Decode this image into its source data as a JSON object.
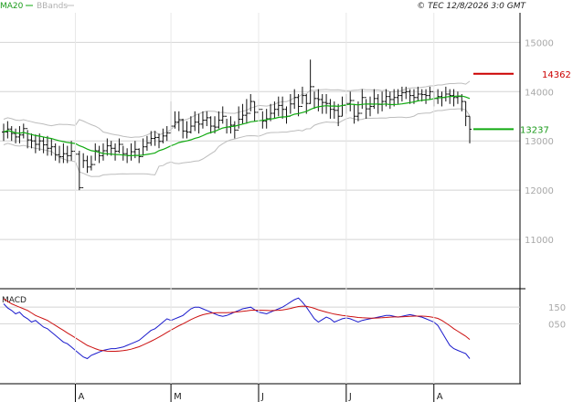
{
  "header": {
    "legend_ma": "MA20",
    "legend_bb": "BBands",
    "copyright": "© TEC 12/8/2026 3:0 GMT"
  },
  "macd_panel": {
    "title": "MACD"
  },
  "colors": {
    "ma": "#11aa11",
    "bbands": "#bdbdbd",
    "ohlc": "#111111",
    "grid": "#d4d4d4",
    "macd": "#1a1acc",
    "signal": "#cc1111",
    "high_marker": "#cc0000",
    "ma_marker": "#11aa11"
  },
  "chart_data": [
    {
      "type": "ohlc",
      "ylim": [
        10000,
        15600
      ],
      "yticks": [
        11000,
        12000,
        13000,
        14000,
        15000
      ],
      "ytick_labels": [
        "11000",
        "12000",
        "13000",
        "14000",
        "15000"
      ],
      "xticks": [
        {
          "label": "A",
          "index": 18
        },
        {
          "label": "M",
          "index": 42
        },
        {
          "label": "J",
          "index": 64
        },
        {
          "label": "J",
          "index": 86
        },
        {
          "label": "A",
          "index": 108
        }
      ],
      "markers": [
        {
          "label": "14362",
          "value": 14362,
          "kind": "high"
        },
        {
          "label": "13237",
          "value": 13237,
          "kind": "ma"
        }
      ],
      "ma_series": "MA20",
      "bb_series": "BBands",
      "closes": [
        13180,
        13240,
        13150,
        13080,
        13120,
        13250,
        13020,
        13000,
        12930,
        13000,
        12920,
        12850,
        12880,
        12720,
        12680,
        12740,
        12700,
        12790,
        12730,
        12050,
        12600,
        12470,
        12520,
        12800,
        12700,
        12800,
        12900,
        12850,
        12790,
        12930,
        12740,
        12700,
        12780,
        12830,
        12680,
        12880,
        12960,
        13050,
        13070,
        12990,
        13100,
        13160,
        13300,
        13380,
        13430,
        13200,
        13180,
        13300,
        13380,
        13340,
        13420,
        13470,
        13300,
        13280,
        13420,
        13500,
        13280,
        13320,
        13220,
        13440,
        13520,
        13560,
        13800,
        13580,
        13640,
        13400,
        13450,
        13560,
        13640,
        13720,
        13640,
        13500,
        13750,
        13880,
        13700,
        13920,
        13760,
        14100,
        13860,
        13840,
        13780,
        13760,
        13640,
        13620,
        13500,
        13720,
        13760,
        13820,
        13500,
        13560,
        13880,
        13650,
        13700,
        13860,
        13740,
        13800,
        13900,
        13840,
        13880,
        13920,
        13980,
        14000,
        13920,
        13880,
        13950,
        13940,
        13920,
        14000,
        13860,
        13900,
        13880,
        13950,
        13920,
        13880,
        13900,
        13800,
        13500,
        13237
      ],
      "highs": [
        13350,
        13400,
        13300,
        13250,
        13300,
        13350,
        13220,
        13150,
        13130,
        13150,
        13080,
        13100,
        13050,
        12950,
        12900,
        12950,
        12900,
        13000,
        12900,
        12800,
        12750,
        12700,
        12700,
        12950,
        12900,
        12950,
        13050,
        13000,
        12950,
        13050,
        12900,
        12850,
        12950,
        13000,
        12850,
        13050,
        13100,
        13200,
        13200,
        13150,
        13250,
        13300,
        13800,
        13600,
        13600,
        13450,
        13400,
        13500,
        13600,
        13550,
        13600,
        13600,
        13500,
        13500,
        13600,
        13700,
        13450,
        13500,
        13400,
        13700,
        13750,
        13850,
        13950,
        13800,
        13850,
        13600,
        13650,
        13750,
        13800,
        13900,
        13900,
        13700,
        13950,
        14050,
        13950,
        14100,
        13950,
        14650,
        14000,
        14050,
        13950,
        13950,
        13850,
        13800,
        13750,
        13900,
        13950,
        14000,
        13750,
        13800,
        14050,
        13850,
        13900,
        14050,
        13950,
        14000,
        14050,
        14000,
        14050,
        14050,
        14100,
        14100,
        14050,
        14050,
        14100,
        14050,
        14050,
        14100,
        14000,
        14050,
        14000,
        14100,
        14050,
        14050,
        14000,
        13950,
        13800,
        13500
      ],
      "lows": [
        13000,
        13050,
        13000,
        12950,
        12950,
        13050,
        12850,
        12850,
        12750,
        12800,
        12750,
        12700,
        12700,
        12600,
        12550,
        12550,
        12550,
        12600,
        12550,
        12000,
        12450,
        12350,
        12400,
        12600,
        12550,
        12600,
        12700,
        12700,
        12600,
        12750,
        12600,
        12550,
        12600,
        12650,
        12550,
        12700,
        12800,
        12900,
        12900,
        12850,
        12950,
        13000,
        13150,
        13250,
        13200,
        13050,
        13050,
        13150,
        13200,
        13150,
        13250,
        13300,
        13150,
        13150,
        13250,
        13350,
        13150,
        13150,
        13050,
        13250,
        13350,
        13350,
        13600,
        13400,
        13450,
        13250,
        13250,
        13400,
        13450,
        13500,
        13450,
        13350,
        13550,
        13650,
        13500,
        13750,
        13550,
        13750,
        13650,
        13600,
        13550,
        13550,
        13450,
        13450,
        13300,
        13500,
        13550,
        13600,
        13350,
        13400,
        13650,
        13450,
        13500,
        13650,
        13550,
        13600,
        13700,
        13650,
        13700,
        13750,
        13800,
        13850,
        13750,
        13750,
        13800,
        13800,
        13750,
        13850,
        13700,
        13750,
        13700,
        13800,
        13750,
        13700,
        13750,
        13600,
        13300,
        12950
      ]
    },
    {
      "type": "line",
      "title": "MACD",
      "ylim": [
        -300,
        250
      ],
      "yticks": [
        50,
        150
      ],
      "ytick_labels": [
        "050",
        "150"
      ],
      "series": [
        {
          "name": "MACD",
          "color": "#1a1acc",
          "values": [
            170,
            145,
            130,
            110,
            120,
            95,
            80,
            60,
            70,
            50,
            30,
            20,
            0,
            -20,
            -40,
            -60,
            -70,
            -90,
            -110,
            -130,
            -150,
            -160,
            -140,
            -130,
            -120,
            -110,
            -105,
            -100,
            -100,
            -95,
            -90,
            -80,
            -70,
            -60,
            -50,
            -30,
            -10,
            10,
            20,
            40,
            60,
            80,
            70,
            80,
            90,
            100,
            120,
            140,
            150,
            150,
            140,
            130,
            120,
            110,
            100,
            95,
            100,
            110,
            120,
            130,
            140,
            145,
            150,
            135,
            120,
            115,
            110,
            120,
            130,
            140,
            150,
            165,
            180,
            195,
            205,
            180,
            150,
            115,
            80,
            60,
            75,
            90,
            80,
            60,
            70,
            80,
            85,
            80,
            70,
            60,
            70,
            75,
            80,
            85,
            90,
            95,
            100,
            100,
            95,
            90,
            95,
            100,
            105,
            100,
            95,
            90,
            80,
            70,
            60,
            40,
            0,
            -40,
            -80,
            -100,
            -110,
            -120,
            -130,
            -160
          ]
        },
        {
          "name": "Signal",
          "color": "#cc1111",
          "values": [
            200,
            185,
            170,
            160,
            150,
            140,
            130,
            115,
            100,
            90,
            80,
            70,
            55,
            40,
            25,
            10,
            -5,
            -20,
            -35,
            -50,
            -65,
            -80,
            -90,
            -100,
            -108,
            -112,
            -115,
            -116,
            -116,
            -114,
            -112,
            -108,
            -103,
            -96,
            -88,
            -78,
            -67,
            -55,
            -43,
            -30,
            -16,
            -2,
            12,
            25,
            38,
            50,
            62,
            75,
            86,
            96,
            104,
            110,
            114,
            116,
            117,
            117,
            117,
            118,
            120,
            122,
            125,
            128,
            131,
            132,
            132,
            131,
            130,
            129,
            130,
            131,
            133,
            137,
            142,
            148,
            154,
            156,
            155,
            150,
            143,
            134,
            127,
            120,
            114,
            108,
            104,
            100,
            97,
            94,
            91,
            88,
            86,
            85,
            84,
            84,
            85,
            86,
            88,
            90,
            91,
            91,
            92,
            93,
            95,
            96,
            96,
            96,
            95,
            92,
            88,
            82,
            70,
            55,
            38,
            20,
            5,
            -10,
            -25,
            -45
          ]
        }
      ]
    }
  ]
}
